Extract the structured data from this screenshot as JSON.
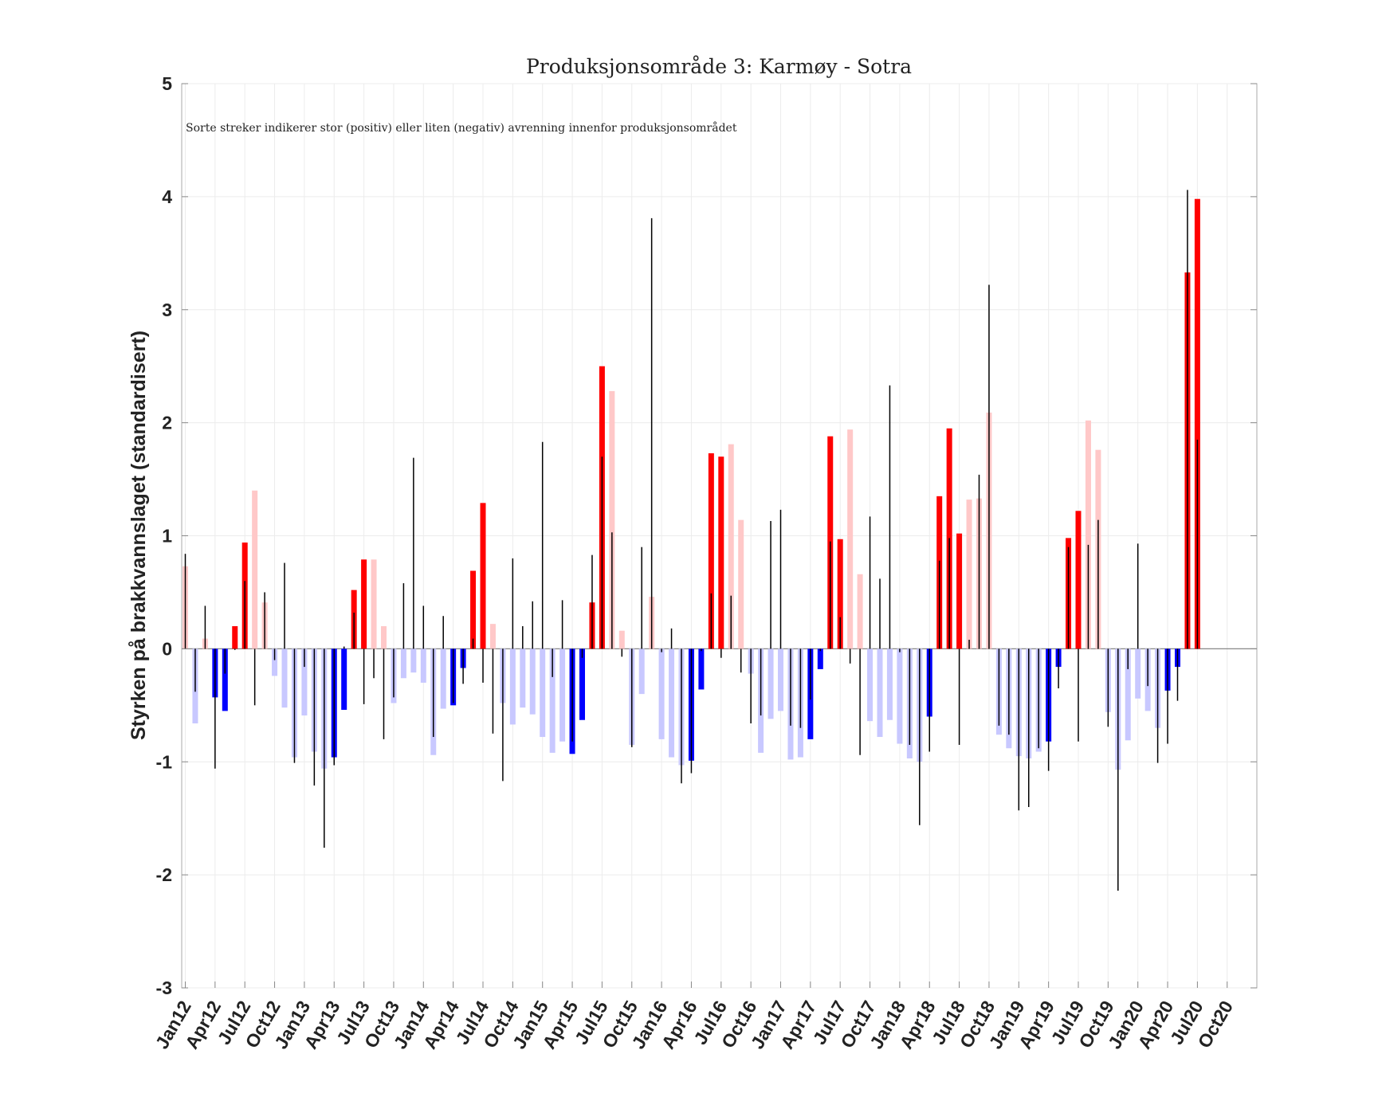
{
  "chart_data": {
    "type": "bar",
    "title": "Produksjonsområde 3: Karmøy - Sotra",
    "annotation": "Sorte streker indikerer stor (positiv) eller liten (negativ) avrenning innenfor produksjonsområdet",
    "xlabel": "",
    "ylabel": "Styrken på brakkvannslaget (standardisert)",
    "ylim": [
      -3,
      5
    ],
    "yticks": [
      -3,
      -2,
      -1,
      0,
      1,
      2,
      3,
      4,
      5
    ],
    "xtick_labels": [
      "Jan12",
      "Apr12",
      "Jul12",
      "Oct12",
      "Jan13",
      "Apr13",
      "Jul13",
      "Oct13",
      "Jan14",
      "Apr14",
      "Jul14",
      "Oct14",
      "Jan15",
      "Apr15",
      "Jul15",
      "Oct15",
      "Jan16",
      "Apr16",
      "Jul16",
      "Oct16",
      "Jan17",
      "Apr17",
      "Jul17",
      "Oct17",
      "Jan18",
      "Apr18",
      "Jul18",
      "Oct18",
      "Jan19",
      "Apr19",
      "Jul19",
      "Oct19",
      "Jan20",
      "Apr20",
      "Jul20",
      "Oct20"
    ],
    "x_start": "Jan12",
    "x_step_months": 1,
    "grid": true,
    "colors": {
      "red": "#ff0000",
      "pink": "#ffc8c8",
      "blue": "#0000ff",
      "lightblue": "#c8c8ff",
      "line": "#000000"
    },
    "series": [
      {
        "name": "Brakkvannslag",
        "values": [
          0.73,
          -0.66,
          0.09,
          -0.43,
          -0.55,
          0.2,
          0.94,
          1.4,
          0.41,
          -0.24,
          -0.52,
          -0.96,
          -0.59,
          -0.91,
          -1.06,
          -0.96,
          -0.54,
          0.52,
          0.79,
          0.79,
          0.2,
          -0.48,
          -0.26,
          -0.21,
          -0.3,
          -0.94,
          -0.53,
          -0.5,
          -0.17,
          0.69,
          1.29,
          0.22,
          -0.48,
          -0.67,
          -0.52,
          -0.58,
          -0.78,
          -0.92,
          -0.82,
          -0.93,
          -0.63,
          0.41,
          2.5,
          2.28,
          0.16,
          -0.85,
          -0.4,
          0.46,
          -0.8,
          -0.96,
          -1.03,
          -0.99,
          -0.36,
          1.73,
          1.7,
          1.81,
          1.14,
          -0.22,
          -0.92,
          -0.62,
          -0.55,
          -0.98,
          -0.96,
          -0.8,
          -0.18,
          1.88,
          0.97,
          1.94,
          0.66,
          -0.64,
          -0.78,
          -0.63,
          -0.84,
          -0.97,
          -1.0,
          -0.6,
          1.35,
          1.95,
          1.02,
          1.32,
          1.33,
          2.09,
          -0.76,
          -0.88,
          -0.95,
          -0.97,
          -0.91,
          -0.82,
          -0.16,
          0.98,
          1.22,
          2.02,
          1.76,
          -0.56,
          -1.07,
          -0.81,
          -0.44,
          -0.55,
          -0.7,
          -0.37,
          -0.16,
          3.33,
          3.98
        ],
        "color_class": [
          "pink",
          "lightblue",
          "pink",
          "blue",
          "blue",
          "red",
          "red",
          "pink",
          "pink",
          "lightblue",
          "lightblue",
          "lightblue",
          "lightblue",
          "lightblue",
          "lightblue",
          "blue",
          "blue",
          "red",
          "red",
          "pink",
          "pink",
          "lightblue",
          "lightblue",
          "lightblue",
          "lightblue",
          "lightblue",
          "lightblue",
          "blue",
          "blue",
          "red",
          "red",
          "pink",
          "lightblue",
          "lightblue",
          "lightblue",
          "lightblue",
          "lightblue",
          "lightblue",
          "lightblue",
          "blue",
          "blue",
          "red",
          "red",
          "pink",
          "pink",
          "lightblue",
          "lightblue",
          "pink",
          "lightblue",
          "lightblue",
          "lightblue",
          "blue",
          "blue",
          "red",
          "red",
          "pink",
          "pink",
          "lightblue",
          "lightblue",
          "lightblue",
          "lightblue",
          "lightblue",
          "lightblue",
          "blue",
          "blue",
          "red",
          "red",
          "pink",
          "pink",
          "lightblue",
          "lightblue",
          "lightblue",
          "lightblue",
          "lightblue",
          "lightblue",
          "blue",
          "red",
          "red",
          "red",
          "pink",
          "pink",
          "pink",
          "lightblue",
          "lightblue",
          "lightblue",
          "lightblue",
          "lightblue",
          "blue",
          "blue",
          "red",
          "red",
          "pink",
          "pink",
          "lightblue",
          "lightblue",
          "lightblue",
          "lightblue",
          "lightblue",
          "lightblue",
          "blue",
          "blue",
          "red",
          "red"
        ]
      },
      {
        "name": "Avrenning",
        "values": [
          0.84,
          -0.38,
          0.38,
          -1.06,
          -0.22,
          -0.01,
          0.6,
          -0.5,
          0.5,
          -0.1,
          0.76,
          -1.01,
          -0.16,
          -1.21,
          -1.76,
          -1.03,
          0.02,
          0.32,
          -0.49,
          -0.26,
          -0.8,
          -0.43,
          0.58,
          1.69,
          0.38,
          -0.78,
          0.29,
          -0.48,
          -0.31,
          0.09,
          -0.3,
          -0.75,
          -1.17,
          0.8,
          0.2,
          0.42,
          1.83,
          -0.25,
          0.43,
          -0.82,
          -0.08,
          0.83,
          1.7,
          1.03,
          -0.07,
          -0.87,
          0.9,
          3.81,
          -0.03,
          0.18,
          -1.19,
          -1.1,
          -0.02,
          0.49,
          -0.08,
          0.47,
          -0.21,
          -0.66,
          -0.59,
          1.13,
          1.23,
          -0.68,
          -0.7,
          -0.45,
          -0.02,
          0.95,
          0.28,
          -0.13,
          -0.94,
          1.17,
          0.62,
          2.33,
          -0.03,
          -0.85,
          -1.56,
          -0.91,
          0.78,
          0.98,
          -0.85,
          0.08,
          1.54,
          3.22,
          -0.68,
          -0.76,
          -1.43,
          -1.4,
          -0.88,
          -1.08,
          -0.35,
          0.9,
          -0.82,
          0.92,
          1.14,
          -0.69,
          -2.14,
          -0.18,
          0.93,
          -0.33,
          -1.01,
          -0.84,
          -0.46,
          4.06,
          1.85
        ]
      }
    ]
  }
}
